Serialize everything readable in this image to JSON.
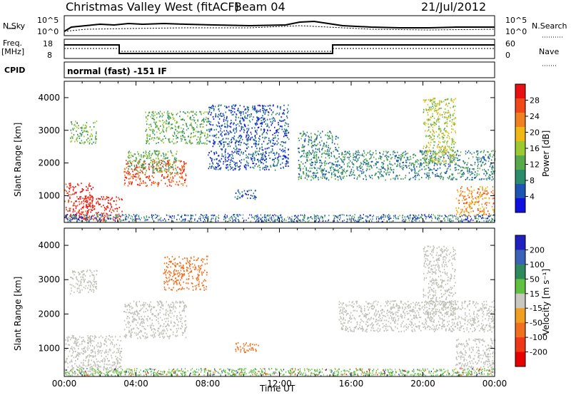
{
  "header": {
    "title_left": "Christmas Valley West (fitACF)",
    "title_mid": "Beam 04",
    "title_right": "21/Jul/2012"
  },
  "strips": {
    "nsky_label": "N.Sky",
    "nsky_ticks": [
      "10^5",
      "10^0"
    ],
    "nsearch_label": "N.Search",
    "freq_label_1": "Freq.",
    "freq_label_2": "[MHz]",
    "freq_ticks": [
      "18",
      "8"
    ],
    "nave_label": "Nave",
    "nave_ticks": [
      "60",
      "0"
    ],
    "cpid_label": "CPID",
    "cpid_text": "normal (fast) -151 IF"
  },
  "colors": {
    "power": [
      "#1010e0",
      "#1e54b4",
      "#2c8c6c",
      "#58a84c",
      "#9cc830",
      "#f0b814",
      "#f08020",
      "#f04818",
      "#e81010"
    ],
    "velocity": [
      "#2020c0",
      "#3a62b8",
      "#2e8a5a",
      "#60c040",
      "#c8c8c0",
      "#f0a020",
      "#f07020",
      "#f03818",
      "#e80000"
    ],
    "ground_scatter": "#c0c0b8"
  },
  "chart_data": [
    {
      "type": "heatmap",
      "name": "power",
      "xlabel": "",
      "ylabel": "Slant Range [km]",
      "ylim": [
        180,
        4500
      ],
      "xlim": [
        0,
        24
      ],
      "y_ticks": [
        "1000",
        "2000",
        "3000",
        "4000"
      ],
      "colorbar_label": "Power [dB]",
      "colorbar_ticks": [
        "4",
        "8",
        "12",
        "16",
        "20",
        "24",
        "28"
      ],
      "colorbar_range": [
        0,
        32
      ],
      "echo_regions": [
        {
          "t0": 0.0,
          "t1": 1.6,
          "r0": 300,
          "r1": 1400,
          "level": 30
        },
        {
          "t0": 1.0,
          "t1": 3.2,
          "r0": 250,
          "r1": 1000,
          "level": 30
        },
        {
          "t0": 3.3,
          "t1": 6.8,
          "r0": 1300,
          "r1": 2100,
          "level": 26
        },
        {
          "t0": 3.5,
          "t1": 6.4,
          "r0": 1700,
          "r1": 2400,
          "level": 14
        },
        {
          "t0": 0.3,
          "t1": 1.8,
          "r0": 2600,
          "r1": 3300,
          "level": 14
        },
        {
          "t0": 4.5,
          "t1": 8.0,
          "r0": 2600,
          "r1": 3600,
          "level": 12
        },
        {
          "t0": 8.0,
          "t1": 12.5,
          "r0": 1800,
          "r1": 3800,
          "level": 6
        },
        {
          "t0": 9.5,
          "t1": 10.8,
          "r0": 900,
          "r1": 1200,
          "level": 6
        },
        {
          "t0": 13.0,
          "t1": 15.3,
          "r0": 1500,
          "r1": 3000,
          "level": 8
        },
        {
          "t0": 15.3,
          "t1": 24.0,
          "r0": 1500,
          "r1": 2400,
          "level": 8
        },
        {
          "t0": 20.0,
          "t1": 21.8,
          "r0": 2000,
          "r1": 4000,
          "level": 16
        },
        {
          "t0": 21.8,
          "t1": 24.0,
          "r0": 400,
          "r1": 1300,
          "level": 22
        }
      ]
    },
    {
      "type": "heatmap",
      "name": "velocity",
      "xlabel": "Time UT",
      "ylabel": "Slant Range [km]",
      "ylim": [
        180,
        4500
      ],
      "xlim": [
        0,
        24
      ],
      "x_ticks": [
        "00:00",
        "04:00",
        "08:00",
        "12:00",
        "16:00",
        "20:00",
        "00:00"
      ],
      "y_ticks": [
        "1000",
        "2000",
        "3000",
        "4000"
      ],
      "colorbar_label": "Velocity [m s⁻¹]",
      "colorbar_ticks": [
        "200",
        "100",
        "50",
        "15",
        "-15",
        "-50",
        "-100",
        "-200"
      ],
      "echo_regions": [
        {
          "t0": 0.0,
          "t1": 3.2,
          "r0": 250,
          "r1": 1400,
          "velocity": 0
        },
        {
          "t0": 3.3,
          "t1": 6.8,
          "r0": 1300,
          "r1": 2400,
          "velocity": 0
        },
        {
          "t0": 5.5,
          "t1": 8.0,
          "r0": 2700,
          "r1": 3700,
          "velocity": -50
        },
        {
          "t0": 0.3,
          "t1": 1.8,
          "r0": 2600,
          "r1": 3300,
          "velocity": 0
        },
        {
          "t0": 9.5,
          "t1": 10.8,
          "r0": 900,
          "r1": 1200,
          "velocity": -50
        },
        {
          "t0": 15.3,
          "t1": 24.0,
          "r0": 1500,
          "r1": 2400,
          "velocity": 0
        },
        {
          "t0": 20.0,
          "t1": 21.8,
          "r0": 2000,
          "r1": 4000,
          "velocity": 0
        },
        {
          "t0": 21.8,
          "t1": 24.0,
          "r0": 400,
          "r1": 1300,
          "velocity": 0
        }
      ]
    }
  ]
}
